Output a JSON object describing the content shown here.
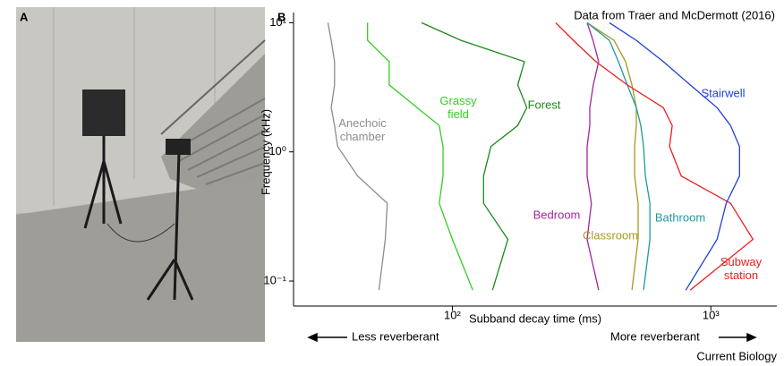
{
  "panel_a": {
    "label": "A"
  },
  "chart_data": {
    "type": "line",
    "panel_label": "B",
    "annotation": "Data from Traer and McDermott (2016)",
    "xlabel": "Subband decay time (ms)",
    "ylabel": "Frequency (kHz)",
    "left_note": "Less reverberant",
    "right_note": "More reverberant",
    "xlog": true,
    "ylog": true,
    "xlim": [
      24.3,
      1800
    ],
    "ylim": [
      0.064,
      12
    ],
    "xticks": [
      {
        "value": 100,
        "label": "10²"
      },
      {
        "value": 1000,
        "label": "10³"
      }
    ],
    "yticks": [
      {
        "value": 10,
        "label": "10¹"
      },
      {
        "value": 1,
        "label": "10⁰"
      },
      {
        "value": 0.1,
        "label": "10⁻¹"
      }
    ],
    "y": [
      10,
      7.3,
      5,
      3.3,
      2.2,
      1.6,
      1.1,
      0.65,
      0.4,
      0.21,
      0.085
    ],
    "series": [
      {
        "name": "Anechoic chamber",
        "color": "#8c8c8c",
        "values": [
          33,
          34,
          35,
          35,
          34,
          35,
          36,
          43,
          56,
          55,
          52
        ]
      },
      {
        "name": "Grassy field",
        "color": "#33cc22",
        "values": [
          47,
          47,
          57,
          57,
          73,
          89,
          92,
          92,
          89,
          100,
          120
        ]
      },
      {
        "name": "Forest",
        "color": "#1a8a1a",
        "values": [
          76,
          108,
          190,
          179,
          194,
          179,
          141,
          132,
          132,
          164,
          143
        ]
      },
      {
        "name": "Bedroom",
        "color": "#a0259e",
        "values": [
          332,
          350,
          368,
          351,
          340,
          340,
          332,
          332,
          345,
          332,
          368
        ]
      },
      {
        "name": "Classroom",
        "color": "#a59a1e",
        "values": [
          332,
          422,
          468,
          495,
          515,
          515,
          507,
          507,
          523,
          523,
          495
        ]
      },
      {
        "name": "Bathroom",
        "color": "#1f9a9a",
        "values": [
          332,
          405,
          439,
          475,
          515,
          536,
          549,
          558,
          581,
          581,
          549
        ]
      },
      {
        "name": "Subway station",
        "color": "#ee1c1c",
        "values": [
          251,
          294,
          359,
          475,
          655,
          709,
          692,
          768,
          1192,
          1455,
          832
        ]
      },
      {
        "name": "Stairwell",
        "color": "#1f3fd8",
        "values": [
          405,
          515,
          655,
          832,
          1057,
          1192,
          1291,
          1291,
          1146,
          1057,
          800
        ]
      }
    ]
  },
  "footer": "Current Biology"
}
